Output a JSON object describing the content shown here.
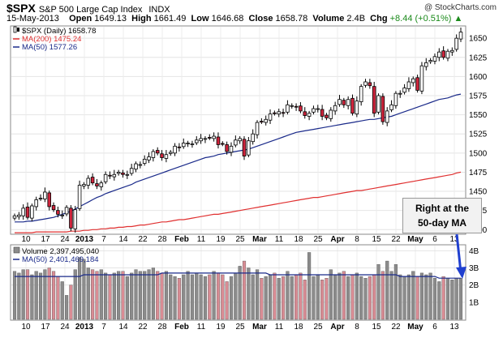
{
  "header": {
    "ticker": "$SPX",
    "description": "S&P 500 Large Cap Index",
    "exchange": "INDX",
    "watermark": "@ StockCharts.com",
    "date": "15-May-2013",
    "open_label": "Open",
    "open": "1649.13",
    "high_label": "High",
    "high": "1661.49",
    "low_label": "Low",
    "low": "1646.68",
    "close_label": "Close",
    "close": "1658.78",
    "volume_label": "Volume",
    "volume": "2.4B",
    "chg_label": "Chg",
    "chg": "+8.44 (+0.51%)",
    "chg_arrow": "▲"
  },
  "annotation": {
    "line1": "Right at the",
    "line2": "50-day MA"
  },
  "colors": {
    "up": "#ffffff",
    "down": "#d0243c",
    "ma200": "#e03030",
    "ma50": "#1a2a8a",
    "vol_up": "#8c8c8c",
    "vol_down": "#d98c94",
    "arrow": "#1f3fcf"
  },
  "chart_data": [
    {
      "type": "candlestick",
      "legend": [
        {
          "label": "$SPX (Daily) 1658.78",
          "icon": "candle-icon"
        },
        {
          "label": "MA(200) 1475.24",
          "color": "#e03030"
        },
        {
          "label": "MA(50) 1577.26",
          "color": "#1a2a8a"
        }
      ],
      "y_ticks": [
        1400,
        1425,
        1450,
        1475,
        1500,
        1525,
        1550,
        1575,
        1600,
        1625,
        1650
      ],
      "ylim": [
        1395,
        1665
      ],
      "x_tick_labels": [
        "10",
        "17",
        "24",
        "2013",
        "7",
        "14",
        "22",
        "28",
        "Feb",
        "11",
        "19",
        "25",
        "Mar",
        "11",
        "18",
        "25",
        "Apr",
        "8",
        "15",
        "22",
        "May",
        "6",
        "13"
      ],
      "bold_ticks": [
        "2013",
        "Feb",
        "Mar",
        "Apr",
        "May"
      ],
      "close": [
        1418,
        1419,
        1428,
        1416,
        1431,
        1439,
        1441,
        1449,
        1430,
        1426,
        1420,
        1419,
        1429,
        1402,
        1426,
        1458,
        1459,
        1467,
        1461,
        1457,
        1461,
        1472,
        1470,
        1472,
        1475,
        1472,
        1472,
        1480,
        1486,
        1485,
        1492,
        1495,
        1502,
        1500,
        1494,
        1498,
        1501,
        1509,
        1507,
        1513,
        1513,
        1512,
        1517,
        1519,
        1519,
        1520,
        1522,
        1511,
        1512,
        1502,
        1509,
        1517,
        1519,
        1496,
        1516,
        1525,
        1540,
        1541,
        1544,
        1551,
        1552,
        1554,
        1552,
        1563,
        1562,
        1560,
        1555,
        1549,
        1552,
        1558,
        1558,
        1548,
        1546,
        1556,
        1562,
        1570,
        1563,
        1570,
        1552,
        1568,
        1587,
        1593,
        1588,
        1552,
        1575,
        1541,
        1555,
        1563,
        1578,
        1578,
        1585,
        1593,
        1597,
        1582,
        1614,
        1618,
        1621,
        1626,
        1632,
        1625,
        1633,
        1634,
        1650,
        1658
      ],
      "ma50": [
        1410,
        1410,
        1410,
        1411,
        1411,
        1412,
        1413,
        1414,
        1415,
        1416,
        1418,
        1420,
        1422,
        1424,
        1427,
        1430,
        1433,
        1436,
        1439,
        1442,
        1444,
        1447,
        1449,
        1451,
        1453,
        1455,
        1457,
        1459,
        1462,
        1464,
        1466,
        1468,
        1470,
        1472,
        1474,
        1476,
        1478,
        1480,
        1482,
        1484,
        1486,
        1488,
        1490,
        1492,
        1494,
        1495,
        1496,
        1498,
        1499,
        1500,
        1501,
        1502,
        1503,
        1504,
        1505,
        1507,
        1509,
        1511,
        1513,
        1515,
        1517,
        1519,
        1521,
        1523,
        1525,
        1527,
        1528,
        1529,
        1530,
        1531,
        1532,
        1533,
        1534,
        1535,
        1536,
        1537,
        1538,
        1539,
        1540,
        1541,
        1542,
        1543,
        1544,
        1544,
        1545,
        1546,
        1547,
        1548,
        1550,
        1552,
        1554,
        1556,
        1558,
        1560,
        1562,
        1564,
        1566,
        1568,
        1570,
        1571,
        1572,
        1574,
        1576,
        1577
      ],
      "ma200": [
        1396,
        1396,
        1396,
        1396,
        1396,
        1397,
        1397,
        1397,
        1397,
        1397,
        1397,
        1397,
        1397,
        1398,
        1398,
        1398,
        1399,
        1399,
        1400,
        1400,
        1401,
        1401,
        1402,
        1402,
        1403,
        1403,
        1404,
        1404,
        1405,
        1406,
        1406,
        1407,
        1408,
        1409,
        1410,
        1410,
        1411,
        1412,
        1413,
        1413,
        1414,
        1415,
        1416,
        1417,
        1418,
        1419,
        1420,
        1420,
        1421,
        1422,
        1423,
        1424,
        1425,
        1426,
        1427,
        1428,
        1429,
        1430,
        1431,
        1432,
        1433,
        1434,
        1435,
        1436,
        1437,
        1438,
        1439,
        1440,
        1441,
        1442,
        1442,
        1443,
        1444,
        1445,
        1446,
        1447,
        1448,
        1449,
        1450,
        1451,
        1451,
        1452,
        1453,
        1454,
        1455,
        1456,
        1457,
        1458,
        1459,
        1460,
        1461,
        1462,
        1463,
        1464,
        1465,
        1466,
        1467,
        1468,
        1469,
        1470,
        1471,
        1472,
        1474,
        1475
      ]
    },
    {
      "type": "bar",
      "legend": [
        {
          "label": "Volume 2,397,495,040",
          "icon": "volume-icon"
        },
        {
          "label": "MA(50) 2,401,469,184",
          "color": "#1a2a8a"
        }
      ],
      "y_ticks": [
        "1B",
        "2B",
        "3B",
        "4B"
      ],
      "y_tick_values": [
        1,
        2,
        3,
        4
      ],
      "ylim": [
        0,
        4.3
      ],
      "volume_b": [
        2.8,
        2.7,
        2.9,
        2.9,
        2.6,
        2.8,
        2.7,
        2.9,
        3.0,
        2.8,
        2.5,
        2.2,
        1.4,
        2.0,
        2.9,
        3.6,
        3.5,
        3.0,
        2.9,
        2.8,
        2.9,
        2.7,
        2.6,
        2.7,
        2.8,
        2.8,
        2.5,
        2.7,
        2.9,
        2.8,
        2.8,
        2.9,
        3.0,
        2.8,
        2.7,
        2.8,
        2.6,
        2.5,
        2.4,
        2.6,
        2.8,
        2.6,
        2.7,
        2.6,
        2.5,
        2.6,
        2.8,
        2.7,
        2.6,
        2.2,
        2.5,
        2.7,
        3.1,
        3.4,
        3.0,
        2.6,
        2.9,
        2.4,
        2.5,
        2.6,
        2.7,
        2.4,
        2.5,
        2.8,
        2.5,
        2.6,
        2.7,
        2.3,
        3.9,
        2.5,
        2.6,
        2.3,
        2.4,
        2.9,
        2.6,
        2.7,
        2.8,
        2.5,
        2.6,
        2.7,
        2.5,
        2.4,
        2.5,
        2.6,
        3.2,
        2.8,
        3.4,
        2.8,
        3.2,
        2.6,
        2.5,
        2.6,
        2.8,
        2.5,
        2.7,
        2.6,
        2.7,
        2.4,
        2.2,
        2.5,
        2.4,
        2.3,
        2.4,
        2.4
      ],
      "ma50_b": [
        2.5,
        2.5,
        2.5,
        2.5,
        2.5,
        2.5,
        2.5,
        2.5,
        2.5,
        2.5,
        2.5,
        2.5,
        2.5,
        2.5,
        2.5,
        2.5,
        2.6,
        2.6,
        2.6,
        2.6,
        2.6,
        2.6,
        2.6,
        2.6,
        2.6,
        2.6,
        2.6,
        2.6,
        2.6,
        2.6,
        2.6,
        2.6,
        2.6,
        2.6,
        2.7,
        2.7,
        2.7,
        2.7,
        2.7,
        2.7,
        2.7,
        2.7,
        2.7,
        2.7,
        2.7,
        2.7,
        2.7,
        2.7,
        2.7,
        2.7,
        2.7,
        2.7,
        2.7,
        2.7,
        2.7,
        2.7,
        2.7,
        2.7,
        2.7,
        2.6,
        2.6,
        2.6,
        2.6,
        2.6,
        2.6,
        2.6,
        2.6,
        2.6,
        2.6,
        2.6,
        2.6,
        2.6,
        2.6,
        2.6,
        2.6,
        2.6,
        2.6,
        2.6,
        2.6,
        2.6,
        2.6,
        2.6,
        2.6,
        2.6,
        2.6,
        2.6,
        2.6,
        2.6,
        2.6,
        2.5,
        2.5,
        2.5,
        2.5,
        2.5,
        2.5,
        2.5,
        2.5,
        2.5,
        2.4,
        2.4,
        2.4,
        2.4,
        2.4,
        2.4
      ]
    }
  ]
}
